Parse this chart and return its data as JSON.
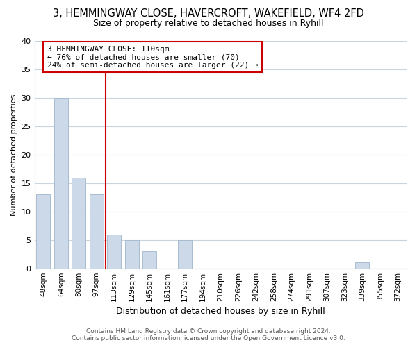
{
  "title": "3, HEMMINGWAY CLOSE, HAVERCROFT, WAKEFIELD, WF4 2FD",
  "subtitle": "Size of property relative to detached houses in Ryhill",
  "xlabel": "Distribution of detached houses by size in Ryhill",
  "ylabel": "Number of detached properties",
  "bin_labels": [
    "48sqm",
    "64sqm",
    "80sqm",
    "97sqm",
    "113sqm",
    "129sqm",
    "145sqm",
    "161sqm",
    "177sqm",
    "194sqm",
    "210sqm",
    "226sqm",
    "242sqm",
    "258sqm",
    "274sqm",
    "291sqm",
    "307sqm",
    "323sqm",
    "339sqm",
    "355sqm",
    "372sqm"
  ],
  "bar_values": [
    13,
    30,
    16,
    13,
    6,
    5,
    3,
    0,
    5,
    0,
    0,
    0,
    0,
    0,
    0,
    0,
    0,
    0,
    1,
    0,
    0
  ],
  "bar_color": "#ccd9e8",
  "bar_edge_color": "#aabcd0",
  "vline_index": 4,
  "vline_color": "#cc0000",
  "annotation_line1": "3 HEMMINGWAY CLOSE: 110sqm",
  "annotation_line2": "← 76% of detached houses are smaller (70)",
  "annotation_line3": "24% of semi-detached houses are larger (22) →",
  "annotation_box_color": "#ffffff",
  "annotation_box_edge": "#cc0000",
  "ylim": [
    0,
    40
  ],
  "yticks": [
    0,
    5,
    10,
    15,
    20,
    25,
    30,
    35,
    40
  ],
  "footer_line1": "Contains HM Land Registry data © Crown copyright and database right 2024.",
  "footer_line2": "Contains public sector information licensed under the Open Government Licence v3.0.",
  "bg_color": "#ffffff",
  "grid_color": "#c8d4de",
  "title_fontsize": 10.5,
  "subtitle_fontsize": 9,
  "ylabel_fontsize": 8,
  "xlabel_fontsize": 9,
  "tick_fontsize": 7.5,
  "annotation_fontsize": 8,
  "footer_fontsize": 6.5
}
